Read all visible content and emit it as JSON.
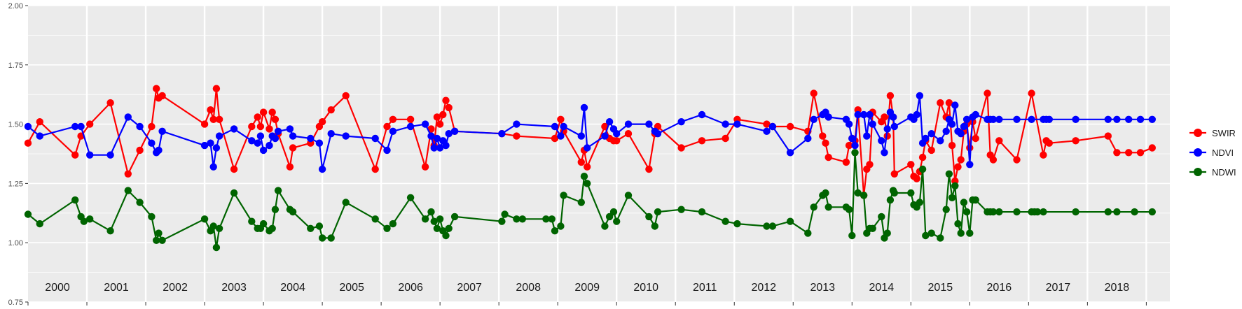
{
  "chart_data": {
    "type": "line",
    "title": "",
    "xlabel": "",
    "ylabel": "",
    "ylim": [
      0.75,
      2.0
    ],
    "xlim": [
      1999.5,
      2018.9
    ],
    "y_ticks": [
      "0.75",
      "1.00",
      "1.25",
      "1.50",
      "1.75",
      "2.00"
    ],
    "year_labels": [
      "2000",
      "2001",
      "2002",
      "2003",
      "2004",
      "2005",
      "2006",
      "2007",
      "2008",
      "2009",
      "2010",
      "2011",
      "2012",
      "2013",
      "2014",
      "2015",
      "2016",
      "2017",
      "2018"
    ],
    "grid": true,
    "legend_position": "right",
    "series": [
      {
        "name": "SWIR",
        "color": "#ff0000",
        "x": [
          1999.5,
          1999.7,
          2000.3,
          2000.4,
          2000.55,
          2000.9,
          2001.2,
          2001.4,
          2001.6,
          2001.68,
          2001.72,
          2001.78,
          2002.5,
          2002.6,
          2002.65,
          2002.7,
          2002.75,
          2003.0,
          2003.3,
          2003.4,
          2003.45,
          2003.5,
          2003.6,
          2003.65,
          2003.7,
          2003.75,
          2003.95,
          2004.0,
          2004.3,
          2004.45,
          2004.5,
          2004.65,
          2004.9,
          2005.4,
          2005.6,
          2005.7,
          2006.0,
          2006.25,
          2006.35,
          2006.4,
          2006.45,
          2006.5,
          2006.55,
          2006.6,
          2006.65,
          2006.75,
          2007.55,
          2007.8,
          2008.45,
          2008.55,
          2008.6,
          2008.9,
          2008.95,
          2009.0,
          2009.3,
          2009.38,
          2009.45,
          2009.5,
          2009.7,
          2010.05,
          2010.15,
          2010.2,
          2010.6,
          2010.95,
          2011.35,
          2011.55,
          2012.05,
          2012.15,
          2012.45,
          2012.75,
          2012.85,
          2013.0,
          2013.05,
          2013.1,
          2013.4,
          2013.45,
          2013.5,
          2013.55,
          2013.6,
          2013.7,
          2013.75,
          2013.8,
          2013.85,
          2014.0,
          2014.05,
          2014.1,
          2014.15,
          2014.2,
          2014.22,
          2014.5,
          2014.55,
          2014.6,
          2014.65,
          2014.7,
          2014.75,
          2014.85,
          2015.0,
          2015.1,
          2015.15,
          2015.2,
          2015.25,
          2015.3,
          2015.35,
          2015.4,
          2015.45,
          2015.5,
          2015.55,
          2015.6,
          2015.8,
          2015.85,
          2015.9,
          2016.0,
          2016.3,
          2016.55,
          2016.75,
          2016.8,
          2016.85,
          2017.3,
          2017.85,
          2018.0,
          2018.2,
          2018.4,
          2018.6
        ],
        "y": [
          1.42,
          1.51,
          1.37,
          1.45,
          1.5,
          1.59,
          1.29,
          1.39,
          1.49,
          1.65,
          1.61,
          1.62,
          1.5,
          1.56,
          1.52,
          1.65,
          1.52,
          1.31,
          1.49,
          1.53,
          1.49,
          1.55,
          1.48,
          1.55,
          1.52,
          1.46,
          1.32,
          1.4,
          1.42,
          1.49,
          1.51,
          1.56,
          1.62,
          1.31,
          1.49,
          1.52,
          1.52,
          1.32,
          1.48,
          1.41,
          1.53,
          1.5,
          1.54,
          1.6,
          1.57,
          1.47,
          1.46,
          1.45,
          1.44,
          1.52,
          1.47,
          1.34,
          1.39,
          1.32,
          1.49,
          1.44,
          1.43,
          1.43,
          1.46,
          1.31,
          1.46,
          1.49,
          1.4,
          1.43,
          1.44,
          1.52,
          1.5,
          1.49,
          1.49,
          1.47,
          1.63,
          1.45,
          1.42,
          1.36,
          1.34,
          1.41,
          1.44,
          1.43,
          1.56,
          1.2,
          1.31,
          1.33,
          1.55,
          1.51,
          1.53,
          1.45,
          1.62,
          1.53,
          1.29,
          1.33,
          1.28,
          1.27,
          1.3,
          1.36,
          1.43,
          1.39,
          1.59,
          1.53,
          1.59,
          1.41,
          1.26,
          1.32,
          1.35,
          1.47,
          1.5,
          1.4,
          1.51,
          1.44,
          1.63,
          1.37,
          1.35,
          1.43,
          1.35,
          1.63,
          1.37,
          1.43,
          1.42,
          1.43,
          1.45,
          1.38,
          1.38,
          1.38,
          1.4
        ]
      },
      {
        "name": "NDVI",
        "color": "#0000ff",
        "x": [
          1999.5,
          1999.7,
          2000.3,
          2000.4,
          2000.55,
          2000.9,
          2001.2,
          2001.4,
          2001.6,
          2001.68,
          2001.72,
          2001.78,
          2002.5,
          2002.6,
          2002.65,
          2002.7,
          2002.75,
          2003.0,
          2003.3,
          2003.4,
          2003.45,
          2003.5,
          2003.6,
          2003.65,
          2003.7,
          2003.75,
          2003.95,
          2004.0,
          2004.3,
          2004.45,
          2004.5,
          2004.65,
          2004.9,
          2005.4,
          2005.6,
          2005.7,
          2006.0,
          2006.25,
          2006.35,
          2006.4,
          2006.45,
          2006.5,
          2006.55,
          2006.6,
          2006.65,
          2006.75,
          2007.55,
          2007.8,
          2008.45,
          2008.55,
          2008.6,
          2008.9,
          2008.95,
          2009.0,
          2009.3,
          2009.38,
          2009.45,
          2009.5,
          2009.7,
          2010.05,
          2010.15,
          2010.2,
          2010.6,
          2010.95,
          2011.35,
          2011.55,
          2012.05,
          2012.15,
          2012.45,
          2012.75,
          2012.85,
          2013.0,
          2013.05,
          2013.1,
          2013.4,
          2013.45,
          2013.5,
          2013.55,
          2013.6,
          2013.7,
          2013.75,
          2013.8,
          2013.85,
          2014.0,
          2014.05,
          2014.1,
          2014.15,
          2014.2,
          2014.22,
          2014.5,
          2014.55,
          2014.6,
          2014.65,
          2014.7,
          2014.75,
          2014.85,
          2015.0,
          2015.1,
          2015.15,
          2015.2,
          2015.25,
          2015.3,
          2015.35,
          2015.4,
          2015.45,
          2015.5,
          2015.55,
          2015.6,
          2015.8,
          2015.85,
          2015.9,
          2016.0,
          2016.3,
          2016.55,
          2016.75,
          2016.8,
          2016.85,
          2017.3,
          2017.85,
          2018.0,
          2018.2,
          2018.4,
          2018.6
        ],
        "y": [
          1.49,
          1.45,
          1.49,
          1.49,
          1.37,
          1.37,
          1.53,
          1.49,
          1.42,
          1.38,
          1.39,
          1.47,
          1.41,
          1.42,
          1.32,
          1.4,
          1.45,
          1.48,
          1.43,
          1.42,
          1.45,
          1.39,
          1.41,
          1.45,
          1.44,
          1.47,
          1.48,
          1.45,
          1.44,
          1.42,
          1.31,
          1.46,
          1.45,
          1.44,
          1.39,
          1.47,
          1.49,
          1.5,
          1.45,
          1.4,
          1.44,
          1.4,
          1.43,
          1.41,
          1.46,
          1.47,
          1.46,
          1.5,
          1.49,
          1.45,
          1.49,
          1.45,
          1.57,
          1.4,
          1.45,
          1.51,
          1.48,
          1.46,
          1.5,
          1.5,
          1.47,
          1.46,
          1.51,
          1.54,
          1.5,
          1.5,
          1.47,
          1.49,
          1.38,
          1.44,
          1.52,
          1.54,
          1.55,
          1.53,
          1.52,
          1.5,
          1.44,
          1.41,
          1.54,
          1.54,
          1.45,
          1.54,
          1.5,
          1.43,
          1.38,
          1.48,
          1.55,
          1.53,
          1.49,
          1.53,
          1.52,
          1.54,
          1.62,
          1.42,
          1.44,
          1.46,
          1.43,
          1.47,
          1.52,
          1.5,
          1.58,
          1.47,
          1.46,
          1.49,
          1.52,
          1.33,
          1.53,
          1.54,
          1.52,
          1.52,
          1.52,
          1.52,
          1.52,
          1.52,
          1.52,
          1.52,
          1.52,
          1.52,
          1.52,
          1.52,
          1.52,
          1.52,
          1.52
        ]
      },
      {
        "name": "NDWI",
        "color": "#006400",
        "x": [
          1999.5,
          1999.7,
          2000.3,
          2000.4,
          2000.45,
          2000.55,
          2000.9,
          2001.2,
          2001.4,
          2001.6,
          2001.68,
          2001.72,
          2001.78,
          2002.5,
          2002.6,
          2002.65,
          2002.7,
          2002.75,
          2003.0,
          2003.3,
          2003.4,
          2003.45,
          2003.5,
          2003.6,
          2003.65,
          2003.7,
          2003.75,
          2003.95,
          2004.0,
          2004.3,
          2004.45,
          2004.5,
          2004.65,
          2004.9,
          2005.4,
          2005.6,
          2005.7,
          2006.0,
          2006.25,
          2006.35,
          2006.4,
          2006.45,
          2006.5,
          2006.55,
          2006.6,
          2006.65,
          2006.75,
          2007.55,
          2007.6,
          2007.8,
          2007.9,
          2008.3,
          2008.4,
          2008.45,
          2008.55,
          2008.6,
          2008.9,
          2008.95,
          2009.0,
          2009.3,
          2009.38,
          2009.45,
          2009.5,
          2009.7,
          2010.05,
          2010.15,
          2010.2,
          2010.6,
          2010.95,
          2011.35,
          2011.55,
          2012.05,
          2012.15,
          2012.45,
          2012.75,
          2012.85,
          2013.0,
          2013.05,
          2013.1,
          2013.4,
          2013.45,
          2013.5,
          2013.55,
          2013.6,
          2013.7,
          2013.75,
          2013.8,
          2013.85,
          2014.0,
          2014.05,
          2014.1,
          2014.15,
          2014.2,
          2014.22,
          2014.5,
          2014.55,
          2014.6,
          2014.65,
          2014.7,
          2014.75,
          2014.85,
          2015.0,
          2015.1,
          2015.15,
          2015.2,
          2015.25,
          2015.3,
          2015.35,
          2015.4,
          2015.45,
          2015.5,
          2015.55,
          2015.6,
          2015.8,
          2015.85,
          2015.9,
          2016.0,
          2016.3,
          2016.55,
          2016.6,
          2016.65,
          2016.75,
          2017.3,
          2017.85,
          2018.0,
          2018.3,
          2018.6
        ],
        "y": [
          1.12,
          1.08,
          1.18,
          1.11,
          1.09,
          1.1,
          1.05,
          1.22,
          1.17,
          1.11,
          1.01,
          1.04,
          1.01,
          1.1,
          1.05,
          1.07,
          0.98,
          1.06,
          1.21,
          1.09,
          1.06,
          1.06,
          1.08,
          1.05,
          1.06,
          1.14,
          1.22,
          1.14,
          1.13,
          1.06,
          1.07,
          1.02,
          1.02,
          1.17,
          1.1,
          1.06,
          1.08,
          1.19,
          1.1,
          1.13,
          1.09,
          1.06,
          1.1,
          1.05,
          1.03,
          1.06,
          1.11,
          1.09,
          1.12,
          1.1,
          1.1,
          1.1,
          1.1,
          1.05,
          1.07,
          1.2,
          1.17,
          1.28,
          1.25,
          1.07,
          1.11,
          1.13,
          1.09,
          1.2,
          1.11,
          1.07,
          1.13,
          1.14,
          1.13,
          1.09,
          1.08,
          1.07,
          1.07,
          1.09,
          1.04,
          1.15,
          1.2,
          1.21,
          1.15,
          1.15,
          1.14,
          1.03,
          1.38,
          1.21,
          1.2,
          1.04,
          1.06,
          1.06,
          1.11,
          1.02,
          1.04,
          1.18,
          1.22,
          1.21,
          1.21,
          1.16,
          1.15,
          1.17,
          1.31,
          1.03,
          1.04,
          1.02,
          1.14,
          1.29,
          1.19,
          1.24,
          1.08,
          1.04,
          1.17,
          1.13,
          1.04,
          1.18,
          1.18,
          1.13,
          1.13,
          1.13,
          1.13,
          1.13,
          1.13,
          1.13,
          1.13,
          1.13,
          1.13,
          1.13,
          1.13,
          1.13,
          1.13
        ]
      }
    ]
  }
}
